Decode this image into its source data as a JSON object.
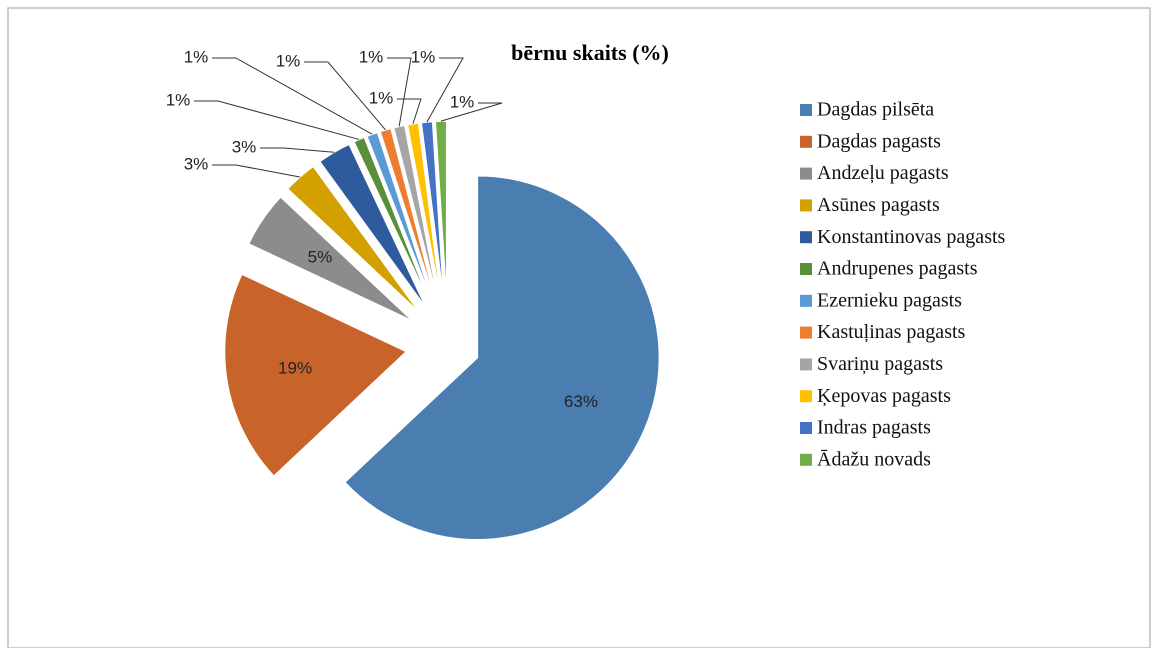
{
  "chart_data": {
    "type": "pie",
    "title": "bērnu skaits (%)",
    "categories": [
      "Dagdas pilsēta",
      "Dagdas pagasts",
      "Andzeļu pagasts",
      "Asūnes pagasts",
      "Konstantinovas pagasts",
      "Andrupenes pagasts",
      "Ezernieku pagasts",
      "Kastuļinas pagasts",
      "Svariņu pagasts",
      "Ķepovas pagasts",
      "Indras pagasts",
      "Ādažu novads"
    ],
    "values": [
      63,
      19,
      5,
      3,
      3,
      1,
      1,
      1,
      1,
      1,
      1,
      1
    ],
    "value_labels": [
      "63%",
      "19%",
      "5%",
      "3%",
      "3%",
      "1%",
      "1%",
      "1%",
      "1%",
      "1%",
      "1%",
      "1%"
    ],
    "colors": [
      "#4a7eb0",
      "#c8642a",
      "#8c8c8c",
      "#d4a000",
      "#2e5a9e",
      "#5a8f3a",
      "#5a9bd5",
      "#ed7d31",
      "#a5a5a5",
      "#ffc000",
      "#4472c4",
      "#70ad47"
    ],
    "legend": "right"
  }
}
